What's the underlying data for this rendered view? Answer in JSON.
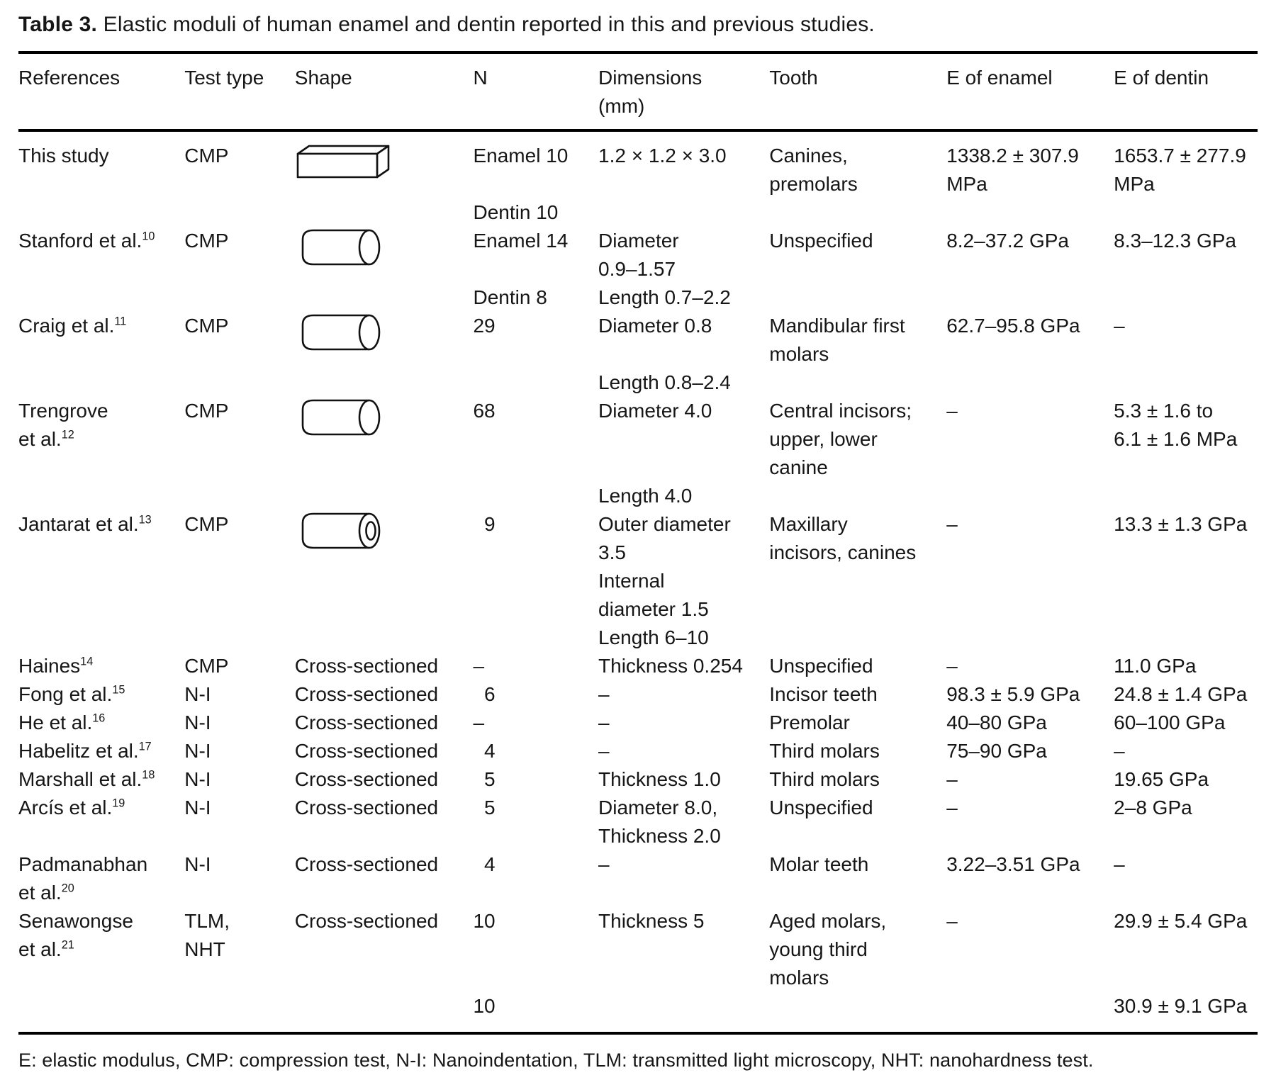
{
  "title": {
    "label": "Table 3.",
    "text": "Elastic moduli of human enamel and dentin reported in this and previous studies."
  },
  "footnote": "E: elastic modulus, CMP: compression test, N-I: Nanoindentation, TLM: transmitted light microscopy, NHT: nanohardness test.",
  "table": {
    "columns": [
      {
        "key": "ref",
        "label_lines": [
          "References"
        ]
      },
      {
        "key": "test",
        "label_lines": [
          "Test type"
        ]
      },
      {
        "key": "shape",
        "label_lines": [
          "Shape"
        ]
      },
      {
        "key": "n",
        "label_lines": [
          "N"
        ]
      },
      {
        "key": "dims",
        "label_lines": [
          "Dimensions",
          "(mm)"
        ]
      },
      {
        "key": "tooth",
        "label_lines": [
          "Tooth"
        ]
      },
      {
        "key": "enamel",
        "label_lines": [
          "E of enamel"
        ]
      },
      {
        "key": "dentin",
        "label_lines": [
          "E of dentin"
        ]
      }
    ],
    "rows": [
      {
        "ref": {
          "lines": [
            "This study"
          ]
        },
        "test": {
          "lines": [
            "CMP"
          ]
        },
        "shape": {
          "shape": "rectangular-bar"
        },
        "n": {
          "lines": [
            "Enamel 10",
            "",
            "Dentin 10"
          ]
        },
        "dims": {
          "lines": [
            "1.2 × 1.2 × 3.0"
          ]
        },
        "tooth": {
          "lines": [
            "Canines,",
            "premolars"
          ]
        },
        "enamel": {
          "lines": [
            "1338.2 ± 307.9",
            "MPa"
          ]
        },
        "dentin": {
          "lines": [
            "1653.7 ± 277.9",
            "MPa"
          ]
        }
      },
      {
        "ref": {
          "lines": [
            {
              "text": "Stanford et al.",
              "sup": "10"
            }
          ]
        },
        "test": {
          "lines": [
            "CMP"
          ]
        },
        "shape": {
          "shape": "cylinder"
        },
        "n": {
          "lines": [
            "Enamel 14",
            "",
            "Dentin 8"
          ]
        },
        "dims": {
          "lines": [
            "Diameter",
            "0.9–1.57",
            "Length 0.7–2.2"
          ]
        },
        "tooth": {
          "lines": [
            "Unspecified"
          ]
        },
        "enamel": {
          "lines": [
            "8.2–37.2 GPa"
          ]
        },
        "dentin": {
          "lines": [
            "8.3–12.3 GPa"
          ]
        }
      },
      {
        "ref": {
          "lines": [
            {
              "text": "Craig et al.",
              "sup": "11"
            }
          ]
        },
        "test": {
          "lines": [
            "CMP"
          ]
        },
        "shape": {
          "shape": "cylinder"
        },
        "n": {
          "lines": [
            "29"
          ]
        },
        "dims": {
          "lines": [
            "Diameter 0.8",
            "",
            "Length 0.8–2.4"
          ]
        },
        "tooth": {
          "lines": [
            "Mandibular first",
            "molars"
          ]
        },
        "enamel": {
          "lines": [
            "62.7–95.8 GPa"
          ]
        },
        "dentin": {
          "lines": [
            "–"
          ]
        }
      },
      {
        "ref": {
          "lines": [
            "Trengrove",
            {
              "text": "et al.",
              "sup": "12"
            }
          ]
        },
        "test": {
          "lines": [
            "CMP"
          ]
        },
        "shape": {
          "shape": "cylinder"
        },
        "n": {
          "lines": [
            "68"
          ]
        },
        "dims": {
          "lines": [
            "Diameter 4.0",
            "",
            "",
            "Length 4.0"
          ]
        },
        "tooth": {
          "lines": [
            "Central incisors;",
            "upper, lower",
            "canine"
          ]
        },
        "enamel": {
          "lines": [
            "–"
          ]
        },
        "dentin": {
          "lines": [
            "5.3 ± 1.6 to",
            "6.1 ± 1.6 MPa"
          ]
        }
      },
      {
        "ref": {
          "lines": [
            {
              "text": "Jantarat et al.",
              "sup": "13"
            }
          ]
        },
        "test": {
          "lines": [
            "CMP"
          ]
        },
        "shape": {
          "shape": "hollow-cylinder"
        },
        "n": {
          "lines": [
            " 9"
          ]
        },
        "dims": {
          "lines": [
            "Outer diameter",
            "3.5",
            "Internal",
            "diameter 1.5",
            "Length 6–10"
          ]
        },
        "tooth": {
          "lines": [
            "Maxillary",
            "incisors, canines"
          ]
        },
        "enamel": {
          "lines": [
            "–"
          ]
        },
        "dentin": {
          "lines": [
            "13.3 ± 1.3 GPa"
          ]
        }
      },
      {
        "ref": {
          "lines": [
            {
              "text": "Haines",
              "sup": "14"
            }
          ]
        },
        "test": {
          "lines": [
            "CMP"
          ]
        },
        "shape": {
          "lines": [
            "Cross-sectioned"
          ]
        },
        "n": {
          "lines": [
            "–"
          ]
        },
        "dims": {
          "lines": [
            "Thickness 0.254"
          ]
        },
        "tooth": {
          "lines": [
            "Unspecified"
          ]
        },
        "enamel": {
          "lines": [
            "–"
          ]
        },
        "dentin": {
          "lines": [
            "11.0 GPa"
          ]
        }
      },
      {
        "ref": {
          "lines": [
            {
              "text": "Fong et al.",
              "sup": "15"
            }
          ]
        },
        "test": {
          "lines": [
            "N-I"
          ]
        },
        "shape": {
          "lines": [
            "Cross-sectioned"
          ]
        },
        "n": {
          "lines": [
            " 6"
          ]
        },
        "dims": {
          "lines": [
            "–"
          ]
        },
        "tooth": {
          "lines": [
            "Incisor teeth"
          ]
        },
        "enamel": {
          "lines": [
            "98.3 ± 5.9 GPa"
          ]
        },
        "dentin": {
          "lines": [
            "24.8 ± 1.4 GPa"
          ]
        }
      },
      {
        "ref": {
          "lines": [
            {
              "text": "He et al.",
              "sup": "16"
            }
          ]
        },
        "test": {
          "lines": [
            "N-I"
          ]
        },
        "shape": {
          "lines": [
            "Cross-sectioned"
          ]
        },
        "n": {
          "lines": [
            "–"
          ]
        },
        "dims": {
          "lines": [
            "–"
          ]
        },
        "tooth": {
          "lines": [
            "Premolar"
          ]
        },
        "enamel": {
          "lines": [
            "40–80 GPa"
          ]
        },
        "dentin": {
          "lines": [
            "60–100 GPa"
          ]
        }
      },
      {
        "ref": {
          "lines": [
            {
              "text": "Habelitz et al.",
              "sup": "17"
            }
          ]
        },
        "test": {
          "lines": [
            "N-I"
          ]
        },
        "shape": {
          "lines": [
            "Cross-sectioned"
          ]
        },
        "n": {
          "lines": [
            " 4"
          ]
        },
        "dims": {
          "lines": [
            "–"
          ]
        },
        "tooth": {
          "lines": [
            "Third molars"
          ]
        },
        "enamel": {
          "lines": [
            "75–90 GPa"
          ]
        },
        "dentin": {
          "lines": [
            "–"
          ]
        }
      },
      {
        "ref": {
          "lines": [
            {
              "text": "Marshall et al.",
              "sup": "18"
            }
          ]
        },
        "test": {
          "lines": [
            "N-I"
          ]
        },
        "shape": {
          "lines": [
            "Cross-sectioned"
          ]
        },
        "n": {
          "lines": [
            " 5"
          ]
        },
        "dims": {
          "lines": [
            "Thickness 1.0"
          ]
        },
        "tooth": {
          "lines": [
            "Third molars"
          ]
        },
        "enamel": {
          "lines": [
            "–"
          ]
        },
        "dentin": {
          "lines": [
            "19.65 GPa"
          ]
        }
      },
      {
        "ref": {
          "lines": [
            {
              "text": "Arcís et al.",
              "sup": "19"
            }
          ]
        },
        "test": {
          "lines": [
            "N-I"
          ]
        },
        "shape": {
          "lines": [
            "Cross-sectioned"
          ]
        },
        "n": {
          "lines": [
            " 5"
          ]
        },
        "dims": {
          "lines": [
            "Diameter 8.0,",
            "Thickness 2.0"
          ]
        },
        "tooth": {
          "lines": [
            "Unspecified"
          ]
        },
        "enamel": {
          "lines": [
            "–"
          ]
        },
        "dentin": {
          "lines": [
            "2–8 GPa"
          ]
        }
      },
      {
        "ref": {
          "lines": [
            "Padmanabhan",
            {
              "text": "et al.",
              "sup": "20"
            }
          ]
        },
        "test": {
          "lines": [
            "N-I"
          ]
        },
        "shape": {
          "lines": [
            "Cross-sectioned"
          ]
        },
        "n": {
          "lines": [
            " 4"
          ]
        },
        "dims": {
          "lines": [
            "–"
          ]
        },
        "tooth": {
          "lines": [
            "Molar teeth"
          ]
        },
        "enamel": {
          "lines": [
            "3.22–3.51 GPa"
          ]
        },
        "dentin": {
          "lines": [
            "–"
          ]
        }
      },
      {
        "ref": {
          "lines": [
            "Senawongse",
            {
              "text": "et al.",
              "sup": "21"
            }
          ]
        },
        "test": {
          "lines": [
            "TLM,",
            "NHT"
          ]
        },
        "shape": {
          "lines": [
            "Cross-sectioned"
          ]
        },
        "n": {
          "lines": [
            "10",
            "",
            "",
            "10"
          ]
        },
        "dims": {
          "lines": [
            "Thickness 5"
          ]
        },
        "tooth": {
          "lines": [
            "Aged molars,",
            "young third",
            "molars"
          ]
        },
        "enamel": {
          "lines": [
            "–"
          ]
        },
        "dentin": {
          "lines": [
            "29.9 ± 5.4 GPa",
            "",
            "",
            "30.9 ± 9.1 GPa"
          ]
        }
      }
    ]
  }
}
